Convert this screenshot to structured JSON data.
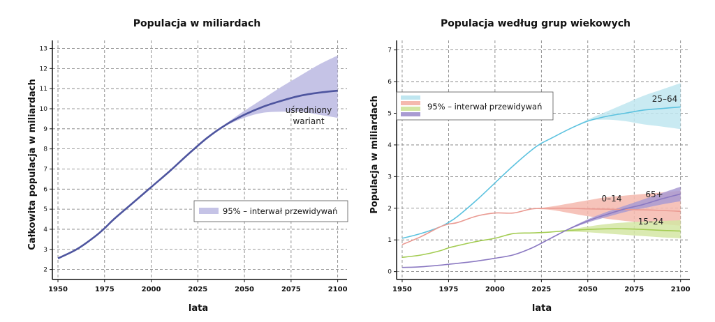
{
  "chart_data": [
    {
      "type": "line",
      "title": "Populacja w miliardach",
      "xlabel": "lata",
      "ylabel": "Całkowita populacja w miliardach",
      "xlim": [
        1947,
        2105
      ],
      "ylim": [
        1.5,
        13.4
      ],
      "xticks": [
        1950,
        1975,
        2000,
        2025,
        2050,
        2075,
        2100
      ],
      "yticks": [
        2,
        3,
        4,
        5,
        6,
        7,
        8,
        9,
        10,
        11,
        12,
        13
      ],
      "grid": true,
      "annotation": {
        "line1": "uśredniony",
        "line2": "wariant"
      },
      "legend": {
        "label": "95% – interwał przewidywań",
        "placement": "right-middle",
        "color": "#c5c3e6"
      },
      "series": [
        {
          "name": "uśredniony wariant",
          "color": "#4e559f",
          "x": [
            1950,
            1960,
            1970,
            1975,
            1980,
            1990,
            2000,
            2010,
            2020,
            2030,
            2040,
            2050,
            2060,
            2070,
            2080,
            2090,
            2100
          ],
          "y": [
            2.55,
            3.0,
            3.65,
            4.05,
            4.5,
            5.3,
            6.1,
            6.9,
            7.75,
            8.55,
            9.2,
            9.7,
            10.1,
            10.4,
            10.65,
            10.8,
            10.9
          ],
          "lower": [
            2.55,
            3.0,
            3.65,
            4.05,
            4.5,
            5.3,
            6.1,
            6.9,
            7.75,
            8.55,
            9.15,
            9.55,
            9.8,
            9.85,
            9.85,
            9.7,
            9.55
          ],
          "upper": [
            2.55,
            3.0,
            3.65,
            4.05,
            4.5,
            5.3,
            6.1,
            6.9,
            7.75,
            8.55,
            9.25,
            9.9,
            10.5,
            11.1,
            11.65,
            12.2,
            12.65
          ],
          "band_color": "#c5c3e6"
        }
      ]
    },
    {
      "type": "line",
      "title": "Populacja według grup wiekowych",
      "xlabel": "lata",
      "ylabel": "Populacja w miliardach",
      "xlim": [
        1947,
        2105
      ],
      "ylim": [
        -0.25,
        7.3
      ],
      "xticks": [
        1950,
        1975,
        2000,
        2025,
        2050,
        2075,
        2100
      ],
      "yticks": [
        0,
        1,
        2,
        3,
        4,
        5,
        6,
        7
      ],
      "grid": true,
      "legend": {
        "label": "95% – interwał przewidywań",
        "placement": "top-left",
        "colors": [
          "#bfe6f0",
          "#f5b9ae",
          "#d3e6a3",
          "#a99bd2"
        ]
      },
      "series": [
        {
          "name": "25–64",
          "color": "#5cc2df",
          "band_color": "#bfe6f0",
          "x": [
            1950,
            1960,
            1970,
            1975,
            1980,
            1990,
            2000,
            2010,
            2020,
            2025,
            2030,
            2040,
            2050,
            2060,
            2070,
            2080,
            2090,
            2100
          ],
          "y": [
            1.05,
            1.2,
            1.4,
            1.55,
            1.75,
            2.25,
            2.8,
            3.35,
            3.85,
            4.05,
            4.2,
            4.5,
            4.75,
            4.9,
            5.0,
            5.1,
            5.15,
            5.2
          ],
          "lower": [
            1.05,
            1.2,
            1.4,
            1.55,
            1.75,
            2.25,
            2.8,
            3.35,
            3.85,
            4.05,
            4.2,
            4.5,
            4.75,
            4.8,
            4.75,
            4.65,
            4.58,
            4.5
          ],
          "upper": [
            1.05,
            1.2,
            1.4,
            1.55,
            1.75,
            2.25,
            2.8,
            3.35,
            3.85,
            4.05,
            4.2,
            4.5,
            4.8,
            5.05,
            5.3,
            5.55,
            5.75,
            5.95
          ]
        },
        {
          "name": "0–14",
          "color": "#ea9a92",
          "band_color": "#f5b9ae",
          "x": [
            1950,
            1960,
            1970,
            1975,
            1980,
            1990,
            2000,
            2010,
            2020,
            2030,
            2040,
            2050,
            2060,
            2070,
            2080,
            2090,
            2100
          ],
          "y": [
            0.85,
            1.1,
            1.4,
            1.5,
            1.55,
            1.75,
            1.85,
            1.85,
            1.98,
            2.0,
            2.0,
            1.98,
            1.97,
            1.96,
            1.95,
            1.93,
            1.9
          ],
          "lower": [
            0.85,
            1.1,
            1.4,
            1.5,
            1.55,
            1.75,
            1.85,
            1.85,
            1.98,
            1.95,
            1.85,
            1.75,
            1.67,
            1.6,
            1.55,
            1.5,
            1.45
          ],
          "upper": [
            0.85,
            1.1,
            1.4,
            1.5,
            1.55,
            1.75,
            1.85,
            1.85,
            1.98,
            2.05,
            2.15,
            2.25,
            2.35,
            2.4,
            2.45,
            2.5,
            2.55
          ]
        },
        {
          "name": "15–24",
          "color": "#a3cc52",
          "band_color": "#d3e6a3",
          "x": [
            1950,
            1960,
            1970,
            1975,
            1980,
            1990,
            2000,
            2010,
            2020,
            2030,
            2040,
            2050,
            2060,
            2070,
            2080,
            2090,
            2100
          ],
          "y": [
            0.45,
            0.52,
            0.65,
            0.75,
            0.82,
            0.95,
            1.05,
            1.2,
            1.22,
            1.25,
            1.3,
            1.33,
            1.35,
            1.35,
            1.33,
            1.3,
            1.28
          ],
          "lower": [
            0.45,
            0.52,
            0.65,
            0.75,
            0.82,
            0.95,
            1.05,
            1.2,
            1.22,
            1.24,
            1.26,
            1.24,
            1.2,
            1.16,
            1.12,
            1.08,
            1.05
          ],
          "upper": [
            0.45,
            0.52,
            0.65,
            0.75,
            0.82,
            0.95,
            1.05,
            1.2,
            1.22,
            1.26,
            1.33,
            1.42,
            1.5,
            1.55,
            1.58,
            1.6,
            1.62
          ]
        },
        {
          "name": "65+",
          "color": "#8b79c2",
          "band_color": "#a99bd2",
          "x": [
            1950,
            1960,
            1970,
            1975,
            1980,
            1990,
            2000,
            2010,
            2020,
            2030,
            2040,
            2050,
            2060,
            2070,
            2080,
            2090,
            2100
          ],
          "y": [
            0.13,
            0.15,
            0.2,
            0.23,
            0.26,
            0.33,
            0.42,
            0.53,
            0.75,
            1.05,
            1.35,
            1.6,
            1.8,
            1.98,
            2.12,
            2.3,
            2.45
          ],
          "lower": [
            0.13,
            0.15,
            0.2,
            0.23,
            0.26,
            0.33,
            0.42,
            0.53,
            0.75,
            1.05,
            1.33,
            1.55,
            1.72,
            1.88,
            2.0,
            2.12,
            2.22
          ],
          "upper": [
            0.13,
            0.15,
            0.2,
            0.23,
            0.26,
            0.33,
            0.42,
            0.53,
            0.75,
            1.05,
            1.37,
            1.65,
            1.88,
            2.08,
            2.28,
            2.48,
            2.68
          ]
        }
      ],
      "labels": {
        "s25_64": "25–64",
        "s0_14": "0–14",
        "s65": "65+",
        "s15_24": "15–24"
      }
    }
  ]
}
